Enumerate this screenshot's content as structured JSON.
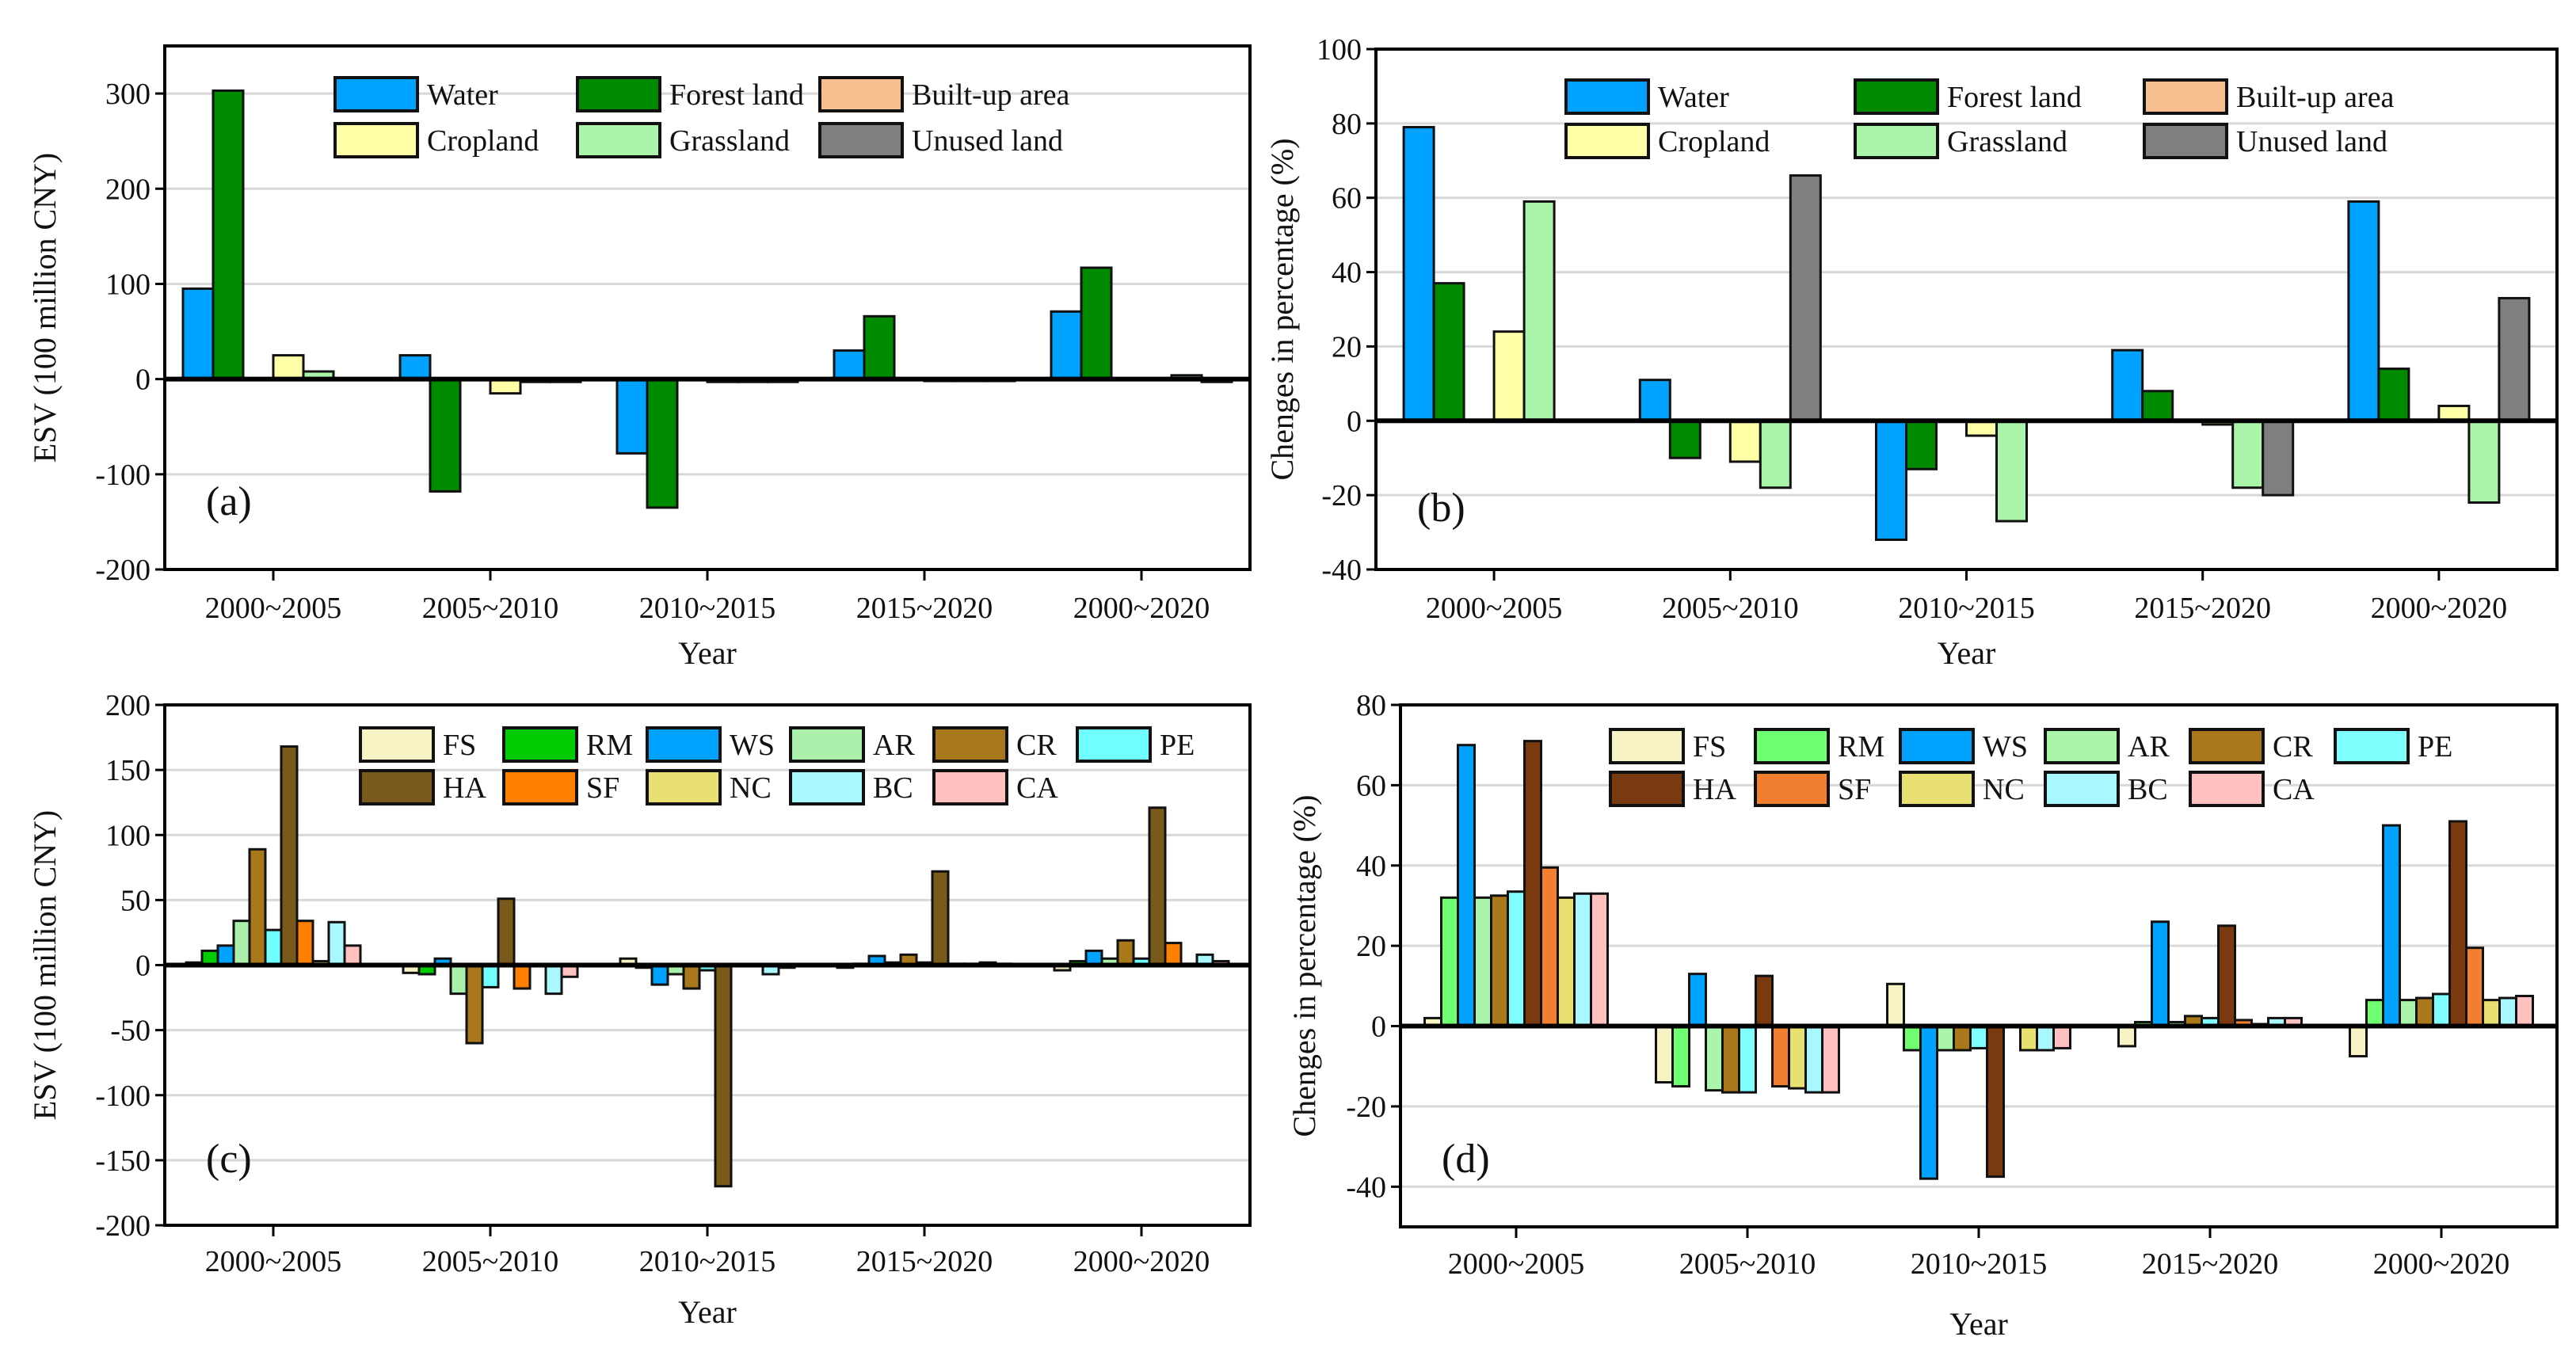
{
  "chart_data": [
    {
      "type": "bar",
      "panel_label": "(a)",
      "title": "",
      "xlabel": "Year",
      "ylabel": "ESV (100 million CNY)",
      "ylim": [
        -200,
        350
      ],
      "yticks": [
        -200,
        -100,
        0,
        100,
        200,
        300
      ],
      "grid": true,
      "legend_placement": "top",
      "categories": [
        "2000~2005",
        "2005~2010",
        "2010~2015",
        "2015~2020",
        "2000~2020"
      ],
      "series": [
        {
          "name": "Water",
          "color": "#00a2ff",
          "values": [
            95,
            25,
            -78,
            30,
            71
          ]
        },
        {
          "name": "Forest land",
          "color": "#008a00",
          "values": [
            303,
            -118,
            -135,
            66,
            117
          ]
        },
        {
          "name": "Built-up area",
          "color": "#f5bf90",
          "values": [
            0,
            0,
            0,
            0,
            0
          ]
        },
        {
          "name": "Cropland",
          "color": "#ffffa8",
          "values": [
            25,
            -15,
            -3,
            -2,
            0
          ]
        },
        {
          "name": "Grassland",
          "color": "#aaf5aa",
          "values": [
            8,
            -3,
            -3,
            -2,
            4
          ]
        },
        {
          "name": "Unused land",
          "color": "#7f7f7f",
          "values": [
            0,
            -3,
            -3,
            -2,
            -3
          ]
        }
      ]
    },
    {
      "type": "bar",
      "panel_label": "(b)",
      "title": "",
      "xlabel": "Year",
      "ylabel": "Chenges in percentage (%)",
      "ylim": [
        -40,
        100
      ],
      "yticks": [
        -40,
        -20,
        0,
        20,
        40,
        60,
        80,
        100
      ],
      "grid": true,
      "legend_placement": "top",
      "categories": [
        "2000~2005",
        "2005~2010",
        "2010~2015",
        "2015~2020",
        "2000~2020"
      ],
      "series": [
        {
          "name": "Water",
          "color": "#00a2ff",
          "values": [
            79,
            11,
            -32,
            19,
            59
          ]
        },
        {
          "name": "Forest land",
          "color": "#008a00",
          "values": [
            37,
            -10,
            -13,
            8,
            14
          ]
        },
        {
          "name": "Built-up area",
          "color": "#f5bf90",
          "values": [
            0,
            0,
            0,
            0,
            0
          ]
        },
        {
          "name": "Cropland",
          "color": "#ffffa8",
          "values": [
            24,
            -11,
            -4,
            -1,
            4
          ]
        },
        {
          "name": "Grassland",
          "color": "#aaf5aa",
          "values": [
            59,
            -18,
            -27,
            -18,
            -22
          ]
        },
        {
          "name": "Unused land",
          "color": "#7f7f7f",
          "values": [
            0,
            66,
            0,
            -20,
            33
          ]
        }
      ]
    },
    {
      "type": "bar",
      "panel_label": "(c)",
      "title": "",
      "xlabel": "Year",
      "ylabel": "ESV (100 million CNY)",
      "ylim": [
        -200,
        200
      ],
      "yticks": [
        -200,
        -150,
        -100,
        -50,
        0,
        50,
        100,
        150,
        200
      ],
      "grid": true,
      "legend_placement": "top",
      "categories": [
        "2000~2005",
        "2005~2010",
        "2010~2015",
        "2015~2020",
        "2000~2020"
      ],
      "series": [
        {
          "name": "FS",
          "color": "#f7f3c4",
          "values": [
            2,
            -6,
            5,
            -2,
            -4
          ]
        },
        {
          "name": "RM",
          "color": "#00cc00",
          "values": [
            11,
            -7,
            -2,
            1,
            3
          ]
        },
        {
          "name": "WS",
          "color": "#00a2ff",
          "values": [
            15,
            5,
            -15,
            7,
            11
          ]
        },
        {
          "name": "AR",
          "color": "#aaf0aa",
          "values": [
            34,
            -22,
            -7,
            2,
            5
          ]
        },
        {
          "name": "CR",
          "color": "#a8781a",
          "values": [
            89,
            -60,
            -18,
            8,
            19
          ]
        },
        {
          "name": "PE",
          "color": "#70ffff",
          "values": [
            27,
            -17,
            -4,
            2,
            5
          ]
        },
        {
          "name": "HA",
          "color": "#7a5a1a",
          "values": [
            168,
            51,
            -170,
            72,
            121
          ]
        },
        {
          "name": "SF",
          "color": "#ff8000",
          "values": [
            34,
            -18,
            0,
            1,
            17
          ]
        },
        {
          "name": "NC",
          "color": "#e8e070",
          "values": [
            3,
            0,
            0,
            1,
            1
          ]
        },
        {
          "name": "BC",
          "color": "#aaf8ff",
          "values": [
            33,
            -22,
            -7,
            2,
            8
          ]
        },
        {
          "name": "CA",
          "color": "#ffc0c0",
          "values": [
            15,
            -9,
            -2,
            1,
            3
          ]
        }
      ]
    },
    {
      "type": "bar",
      "panel_label": "(d)",
      "title": "",
      "xlabel": "Year",
      "ylabel": "Chenges in percentage (%)",
      "ylim": [
        -50,
        80
      ],
      "yticks": [
        -40,
        -20,
        0,
        20,
        40,
        60,
        80
      ],
      "grid": true,
      "legend_placement": "top",
      "categories": [
        "2000~2005",
        "2005~2010",
        "2010~2015",
        "2015~2020",
        "2000~2020"
      ],
      "series": [
        {
          "name": "FS",
          "color": "#f7f3c4",
          "values": [
            2,
            -14,
            10.5,
            -5,
            -7.5
          ]
        },
        {
          "name": "RM",
          "color": "#70ff70",
          "values": [
            32,
            -15,
            -6,
            1,
            6.5
          ]
        },
        {
          "name": "WS",
          "color": "#00a2ff",
          "values": [
            70,
            13,
            -38,
            26,
            50
          ]
        },
        {
          "name": "AR",
          "color": "#aaf5aa",
          "values": [
            32,
            -16,
            -6,
            1,
            6.5
          ]
        },
        {
          "name": "CR",
          "color": "#a8781a",
          "values": [
            32.5,
            -16.5,
            -6,
            2.5,
            7
          ]
        },
        {
          "name": "PE",
          "color": "#80ffff",
          "values": [
            33.5,
            -16.5,
            -5.5,
            2,
            8
          ]
        },
        {
          "name": "HA",
          "color": "#7a3a10",
          "values": [
            71,
            12.5,
            -37.5,
            25,
            51
          ]
        },
        {
          "name": "SF",
          "color": "#f08030",
          "values": [
            39.5,
            -15,
            0,
            1.5,
            19.5
          ]
        },
        {
          "name": "NC",
          "color": "#e8e070",
          "values": [
            32,
            -15.5,
            -6,
            0.5,
            6.5
          ]
        },
        {
          "name": "BC",
          "color": "#aaf8ff",
          "values": [
            33,
            -16.5,
            -6,
            2,
            7
          ]
        },
        {
          "name": "CA",
          "color": "#ffc0c0",
          "values": [
            33,
            -16.5,
            -5.5,
            2,
            7.5
          ]
        }
      ]
    }
  ]
}
